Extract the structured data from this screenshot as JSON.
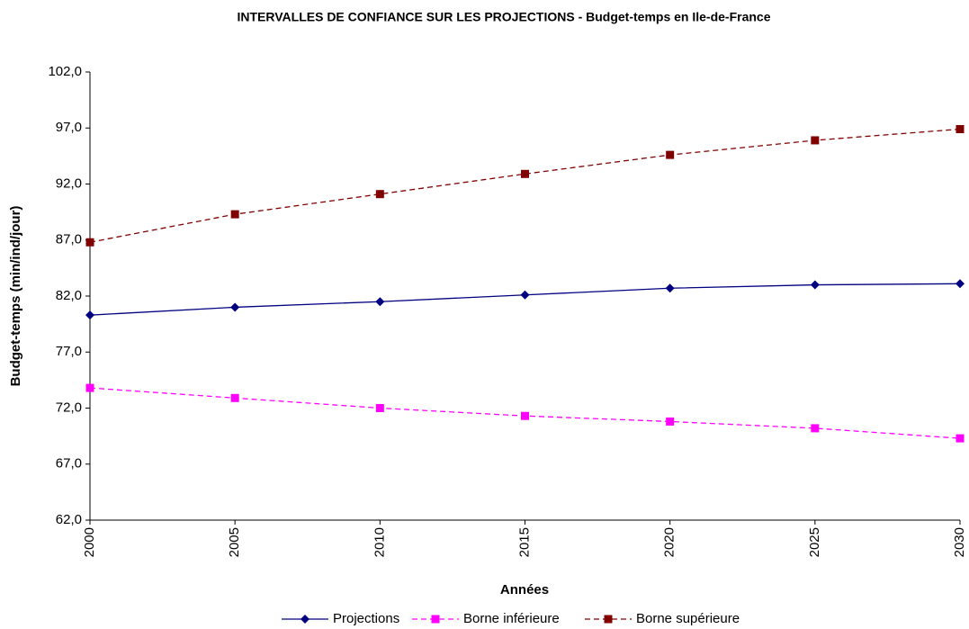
{
  "chart_data": {
    "type": "line",
    "title": "INTERVALLES DE CONFIANCE SUR LES PROJECTIONS - Budget-temps en Ile-de-France",
    "x_label": "Années",
    "y_label": "Budget-temps (min/ind/jour)",
    "x": [
      2000,
      2005,
      2010,
      2015,
      2020,
      2025,
      2030
    ],
    "xlim": [
      2000,
      2030
    ],
    "xticks": [
      2000,
      2005,
      2010,
      2015,
      2020,
      2025,
      2030
    ],
    "ylim": [
      62,
      102
    ],
    "yticks": [
      {
        "value": 62,
        "label": "62,0"
      },
      {
        "value": 67,
        "label": "67,0"
      },
      {
        "value": 72,
        "label": "72,0"
      },
      {
        "value": 77,
        "label": "77,0"
      },
      {
        "value": 82,
        "label": "82,0"
      },
      {
        "value": 87,
        "label": "87,0"
      },
      {
        "value": 92,
        "label": "92,0"
      },
      {
        "value": 97,
        "label": "97,0"
      },
      {
        "value": 102,
        "label": "102,0"
      }
    ],
    "grid": false,
    "legend": "bottom",
    "series": [
      {
        "name": "Projections",
        "color": "#000080",
        "dashed": false,
        "marker": "diamond",
        "values": [
          80.3,
          81.0,
          81.5,
          82.1,
          82.7,
          83.0,
          83.1
        ]
      },
      {
        "name": "Borne inférieure",
        "color": "#ff00ff",
        "dashed": true,
        "marker": "square",
        "values": [
          73.8,
          72.9,
          72.0,
          71.3,
          70.8,
          70.2,
          69.3
        ]
      },
      {
        "name": "Borne supérieure",
        "color": "#800000",
        "dashed": true,
        "marker": "square",
        "values": [
          86.8,
          89.3,
          91.1,
          92.9,
          94.6,
          95.9,
          96.9
        ]
      }
    ]
  }
}
